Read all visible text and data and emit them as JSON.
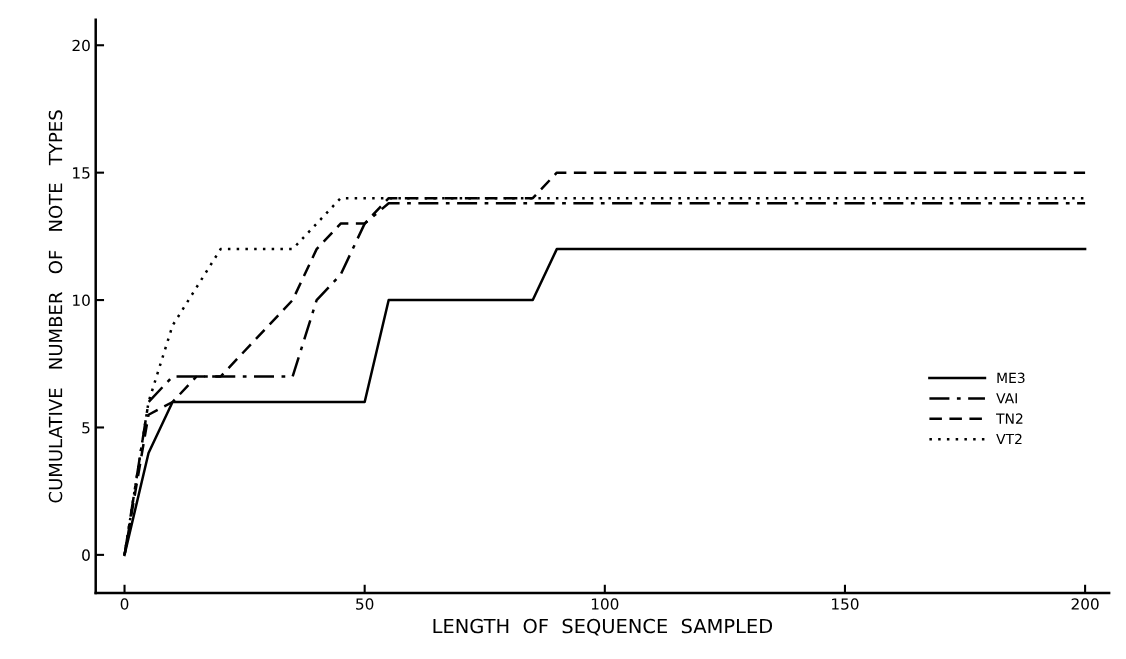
{
  "chart_data": {
    "type": "line",
    "xlabel": "LENGTH  OF  SEQUENCE  SAMPLED",
    "ylabel": "CUMULATIVE   NUMBER   OF   NOTE   TYPES",
    "xlim": [
      -6,
      205
    ],
    "ylim": [
      -1.5,
      21
    ],
    "xticks": [
      0,
      50,
      100,
      150,
      200
    ],
    "yticks": [
      0,
      5,
      10,
      15,
      20
    ],
    "grid": false,
    "legend": "right",
    "marker": "none",
    "series": [
      {
        "name": "ME3",
        "color": "#000000",
        "line_style": "solid",
        "x": [
          0,
          5,
          10,
          50,
          55,
          85,
          90,
          200
        ],
        "values": [
          0,
          4,
          6,
          6,
          10,
          10,
          12,
          12
        ]
      },
      {
        "name": "VAI",
        "color": "#000000",
        "line_style": "dashdot",
        "x": [
          0,
          5,
          10,
          35,
          40,
          45,
          50,
          55,
          200
        ],
        "values": [
          0,
          6,
          7,
          7,
          10,
          11,
          13,
          13.8,
          13.8
        ]
      },
      {
        "name": "TN2",
        "color": "#000000",
        "line_style": "dashed",
        "x": [
          0,
          5,
          10,
          15,
          20,
          35,
          40,
          45,
          50,
          55,
          85,
          90,
          200
        ],
        "values": [
          0,
          5.5,
          6,
          7,
          7,
          10,
          12,
          13,
          13,
          14,
          14,
          15,
          15
        ]
      },
      {
        "name": "VT2",
        "color": "#000000",
        "line_style": "dotted",
        "x": [
          0,
          5,
          10,
          15,
          20,
          35,
          45,
          200
        ],
        "values": [
          0,
          6,
          9,
          10.5,
          12,
          12,
          14,
          14
        ]
      }
    ]
  }
}
